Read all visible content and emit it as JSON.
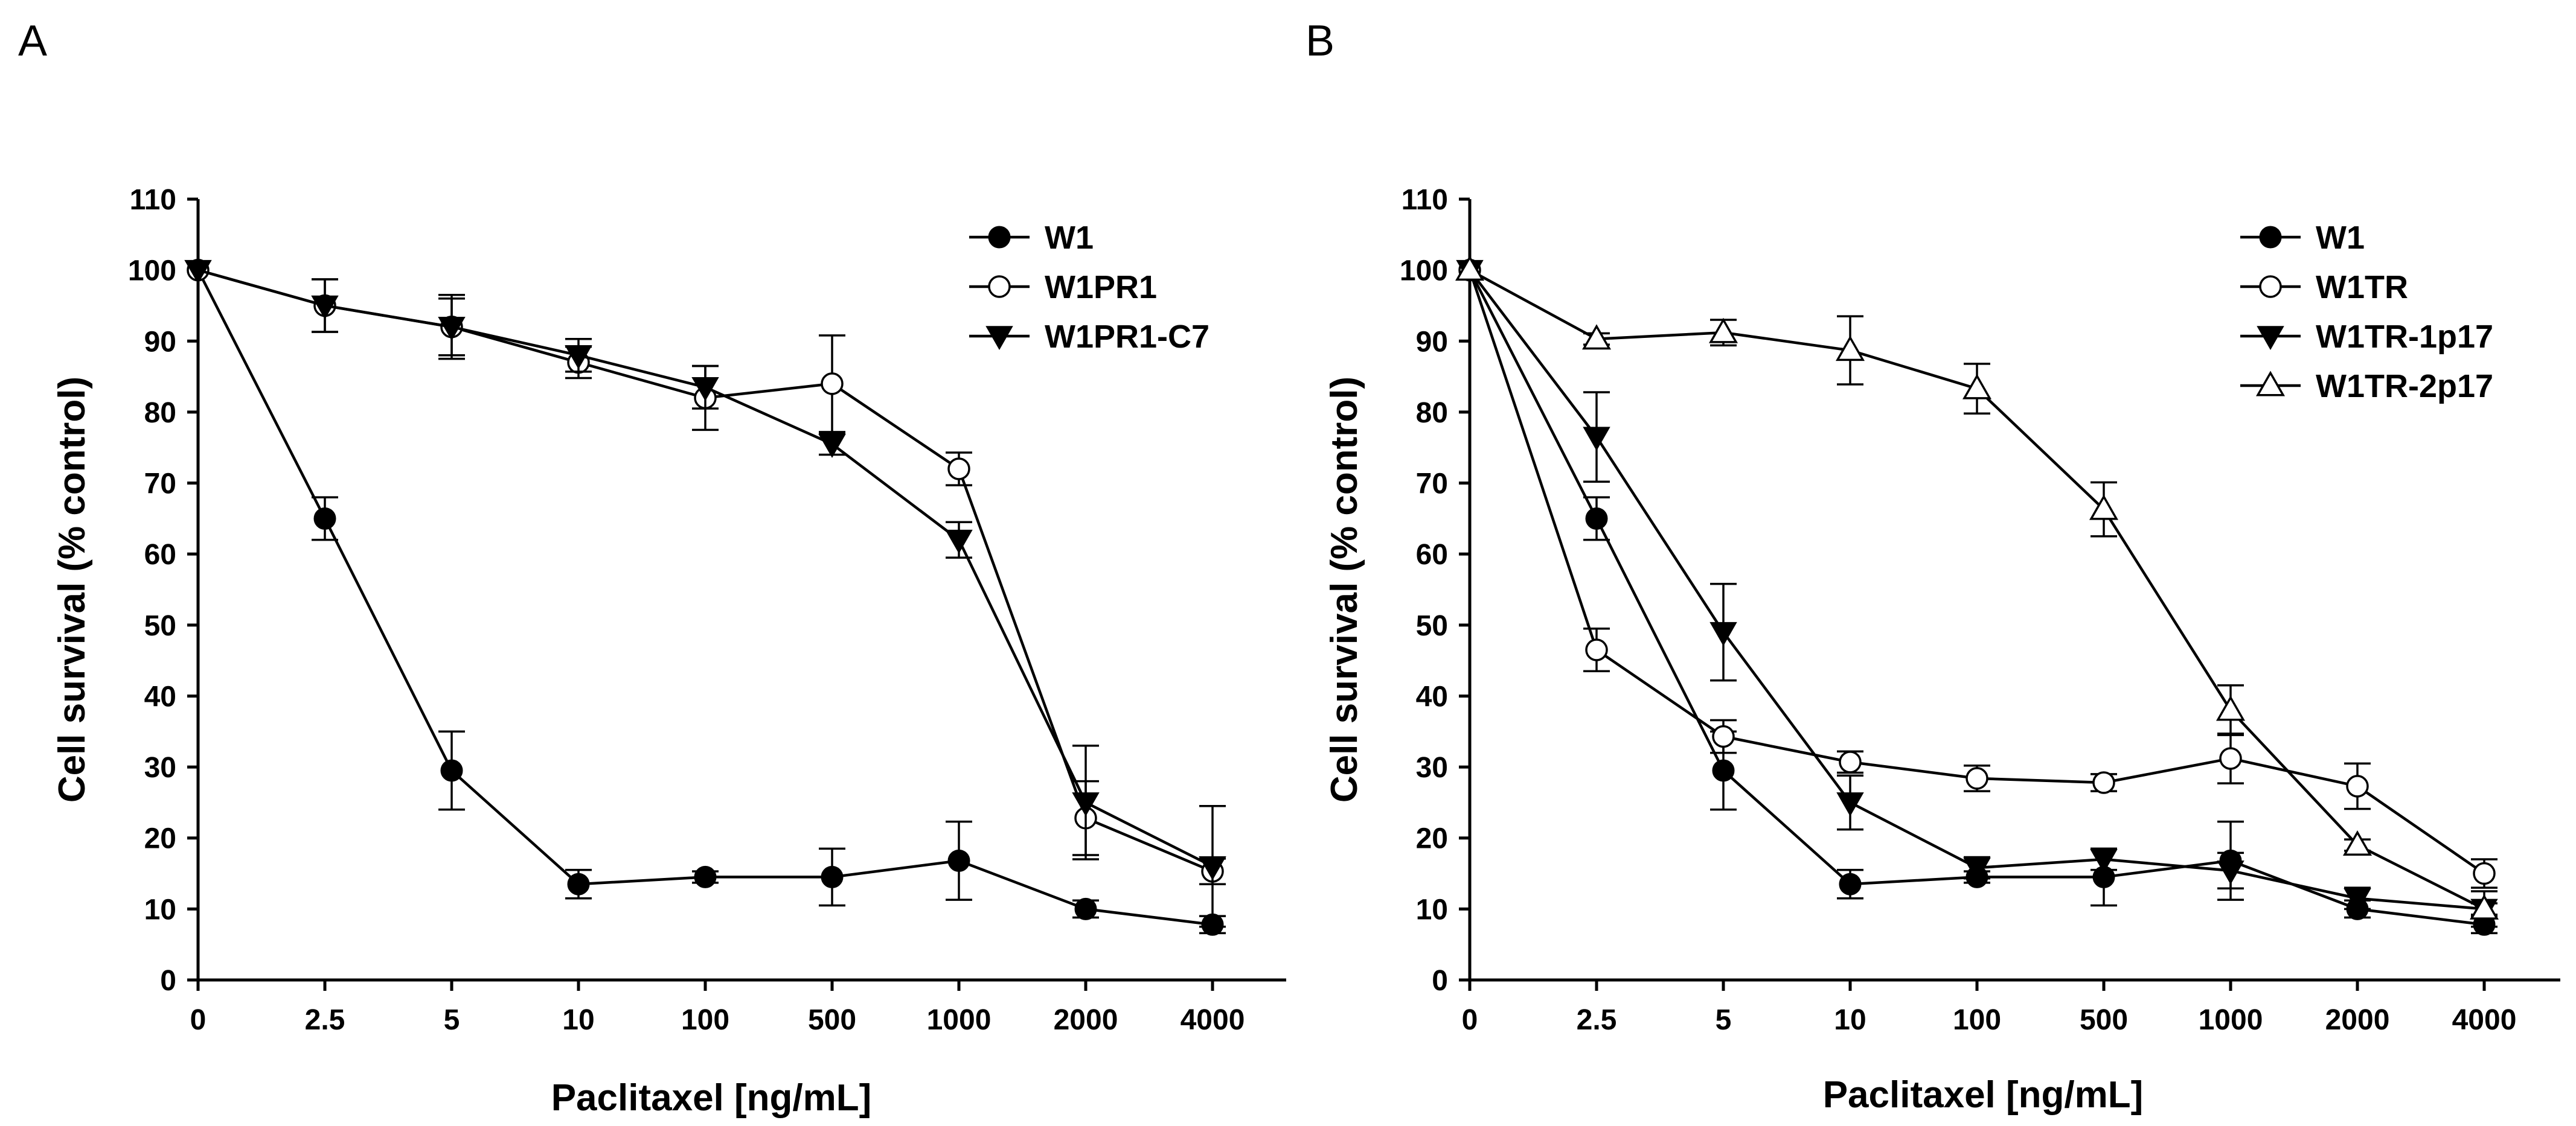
{
  "chart_data": [
    {
      "type": "line",
      "panel_label": "A",
      "title": "",
      "xlabel": "Paclitaxel [ng/mL]",
      "ylabel": "Cell survival (% control)",
      "x": [
        "0",
        "2.5",
        "5",
        "10",
        "100",
        "500",
        "1000",
        "2000",
        "4000"
      ],
      "ylim": [
        0,
        110
      ],
      "yticks": [
        0,
        10,
        20,
        30,
        40,
        50,
        60,
        70,
        80,
        90,
        100,
        110
      ],
      "grid": false,
      "legend_position": "top-right",
      "series": [
        {
          "name": "W1",
          "marker": "filled-circle",
          "values": [
            100,
            65,
            29.5,
            13.5,
            14.5,
            14.5,
            16.8,
            10,
            7.8
          ],
          "errors": [
            0,
            3,
            5.5,
            2,
            0.8,
            4,
            5.5,
            1.2,
            1.2
          ]
        },
        {
          "name": "W1PR1",
          "marker": "open-circle",
          "values": [
            100,
            95,
            92,
            87,
            82,
            84,
            72,
            22.8,
            15.3
          ],
          "errors": [
            0,
            3.7,
            4,
            2.2,
            4.5,
            6.8,
            2.3,
            5.2,
            1.8
          ]
        },
        {
          "name": "W1PR1-C7",
          "marker": "filled-triangle-down",
          "values": [
            100,
            95,
            92,
            88,
            83.5,
            75.5,
            62,
            25,
            16
          ],
          "errors": [
            0,
            3.7,
            4.5,
            2.3,
            3,
            1.5,
            2.5,
            8,
            8.5
          ]
        }
      ]
    },
    {
      "type": "line",
      "panel_label": "B",
      "title": "",
      "xlabel": "Paclitaxel [ng/mL]",
      "ylabel": "Cell survival (% control)",
      "x": [
        "0",
        "2.5",
        "5",
        "10",
        "100",
        "500",
        "1000",
        "2000",
        "4000"
      ],
      "ylim": [
        0,
        110
      ],
      "yticks": [
        0,
        10,
        20,
        30,
        40,
        50,
        60,
        70,
        80,
        90,
        100,
        110
      ],
      "grid": false,
      "legend_position": "top-right",
      "series": [
        {
          "name": "W1",
          "marker": "filled-circle",
          "values": [
            100,
            65,
            29.5,
            13.5,
            14.5,
            14.5,
            16.8,
            10,
            7.8
          ],
          "errors": [
            0,
            3,
            5.5,
            2,
            0.8,
            4,
            5.5,
            1.2,
            1.2
          ]
        },
        {
          "name": "W1TR",
          "marker": "open-circle",
          "values": [
            100,
            46.5,
            34.3,
            30.7,
            28.4,
            27.8,
            31.2,
            27.3,
            15
          ],
          "errors": [
            0,
            3,
            2.3,
            1.5,
            1.8,
            1.2,
            3.5,
            3.2,
            2
          ]
        },
        {
          "name": "W1TR-1p17",
          "marker": "filled-triangle-down",
          "values": [
            100,
            76.5,
            49,
            25,
            15.8,
            17,
            15.4,
            11.5,
            10
          ],
          "errors": [
            0,
            6.3,
            6.8,
            3.8,
            1.5,
            1.5,
            2.5,
            1.5,
            2.5
          ]
        },
        {
          "name": "W1TR-2p17",
          "marker": "open-triangle-up",
          "values": [
            100,
            90.3,
            91.2,
            88.7,
            83.3,
            66.3,
            38,
            19,
            10
          ],
          "errors": [
            0,
            0.8,
            1.8,
            4.8,
            3.5,
            3.8,
            3.5,
            0.8,
            0.8
          ]
        }
      ]
    }
  ]
}
